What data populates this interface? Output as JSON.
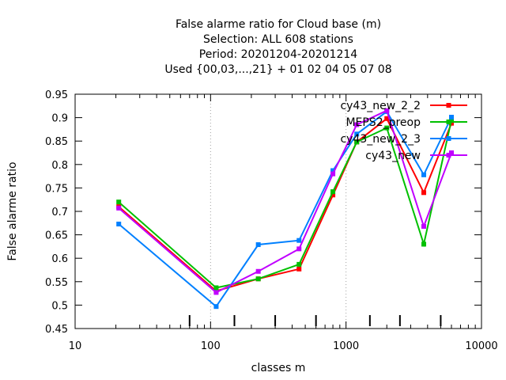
{
  "chart_data": {
    "type": "line",
    "title_lines": [
      "False alarme ratio  for Cloud base (m)",
      "Selection: ALL    608 stations",
      "Period: 20201204-20201214",
      "Used {00,03,...,21} + 01 02 04 05 07 08"
    ],
    "xlabel": "classes m",
    "ylabel": "False alarme ratio",
    "xscale": "log",
    "xlim": [
      10,
      10000
    ],
    "ylim": [
      0.45,
      0.95
    ],
    "x_ticks": [
      10,
      100,
      1000,
      10000
    ],
    "x_tick_labels": [
      "10",
      "100",
      "1000",
      "10000"
    ],
    "y_ticks": [
      0.45,
      0.5,
      0.55,
      0.6,
      0.65,
      0.7,
      0.75,
      0.8,
      0.85,
      0.9,
      0.95
    ],
    "y_tick_labels": [
      "0.45",
      "0.5",
      "0.55",
      "0.6",
      "0.65",
      "0.7",
      "0.75",
      "0.8",
      "0.85",
      "0.9",
      "0.95"
    ],
    "grid": "major x gridlines at 100 and 1000 (dotted)",
    "legend_position": "top-right",
    "class_marks": [
      70,
      150,
      300,
      600,
      1500,
      2500,
      5000
    ],
    "x": [
      21,
      110,
      225,
      450,
      800,
      1200,
      2000,
      3750,
      6000
    ],
    "series": [
      {
        "name": "cy43_new_2_2",
        "color": "#ff0000",
        "values": [
          0.71,
          0.53,
          0.556,
          0.577,
          0.735,
          0.848,
          0.898,
          0.74,
          0.888
        ]
      },
      {
        "name": "MEPS2_preop",
        "color": "#00c000",
        "values": [
          0.72,
          0.537,
          0.556,
          0.587,
          0.742,
          0.848,
          0.878,
          0.63,
          0.895
        ]
      },
      {
        "name": "cy43_new_2_3",
        "color": "#0080ff",
        "values": [
          0.673,
          0.497,
          0.629,
          0.638,
          0.787,
          0.865,
          0.913,
          0.778,
          0.901
        ]
      },
      {
        "name": "cy43_new",
        "color": "#c000ff",
        "values": [
          0.707,
          0.527,
          0.572,
          0.62,
          0.78,
          0.885,
          0.915,
          0.668,
          0.825
        ]
      }
    ]
  }
}
